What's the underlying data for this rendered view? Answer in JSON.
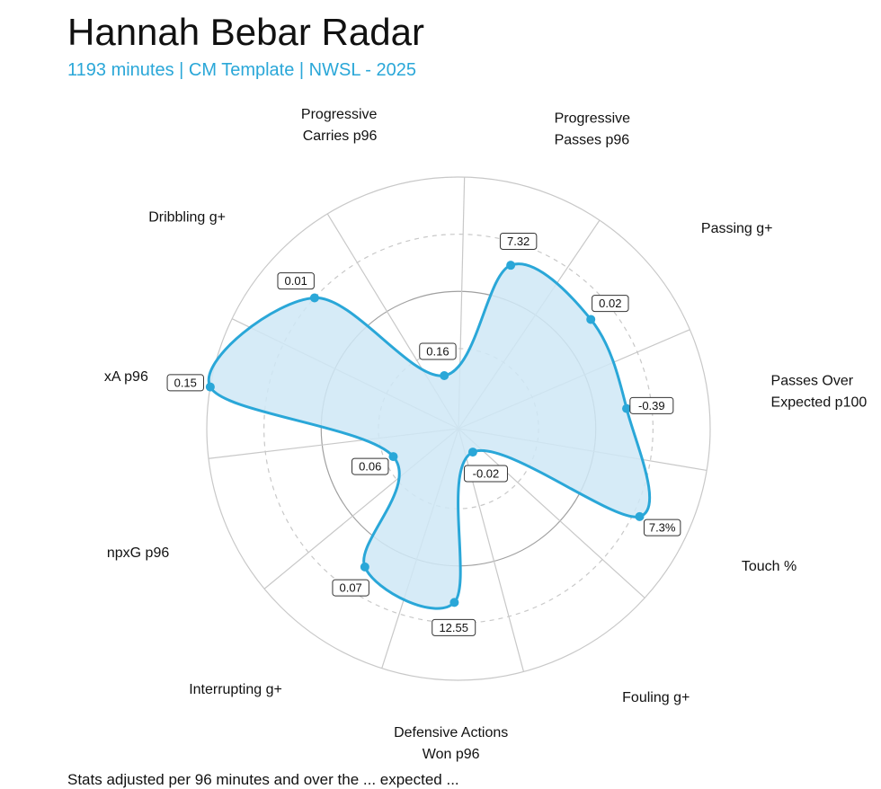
{
  "title": "Hannah Bebar Radar",
  "subtitle": "1193 minutes | CM Template | NWSL - 2025",
  "footnote": "Stats adjusted per 96 minutes and over the ... expected ...",
  "colors": {
    "series_stroke": "#2aa7d8",
    "series_fill": "#cfe8f6",
    "subtitle": "#2aa7d8",
    "grid": "#c8c8c8",
    "grid_dashed": "#c8c8c8",
    "grid_inner": "#a0a0a0"
  },
  "chart_data": {
    "type": "radar",
    "title": "Hannah Bebar Radar",
    "subtitle": "1193 minutes | CM Template | NWSL - 2025",
    "scale": "percentile",
    "range": [
      0,
      100
    ],
    "grid": true,
    "axes": [
      {
        "label": [
          "Progressive",
          "Carries p96"
        ],
        "value_label": "0.16",
        "percentile": 14
      },
      {
        "label": [
          "Progressive",
          "Passes p96"
        ],
        "value_label": "7.32",
        "percentile": 65
      },
      {
        "label": [
          "Passing g+"
        ],
        "value_label": "0.02",
        "percentile": 65
      },
      {
        "label": [
          "Passes Over",
          "Expected p100"
        ],
        "value_label": "-0.39",
        "percentile": 64
      },
      {
        "label": [
          "Touch %"
        ],
        "value_label": "7.3%",
        "percentile": 78
      },
      {
        "label": [
          "Fouling g+"
        ],
        "value_label": "-0.02",
        "percentile": 2
      },
      {
        "label": [
          "Defensive Actions",
          "Won p96"
        ],
        "value_label": "12.55",
        "percentile": 66
      },
      {
        "label": [
          "Interrupting g+"
        ],
        "value_label": "0.07",
        "percentile": 63
      },
      {
        "label": [
          "npxG p96"
        ],
        "value_label": "0.06",
        "percentile": 21
      },
      {
        "label": [
          "xA p96"
        ],
        "value_label": "0.15",
        "percentile": 100
      },
      {
        "label": [
          "Dribbling g+"
        ],
        "value_label": "0.01",
        "percentile": 75
      }
    ]
  }
}
